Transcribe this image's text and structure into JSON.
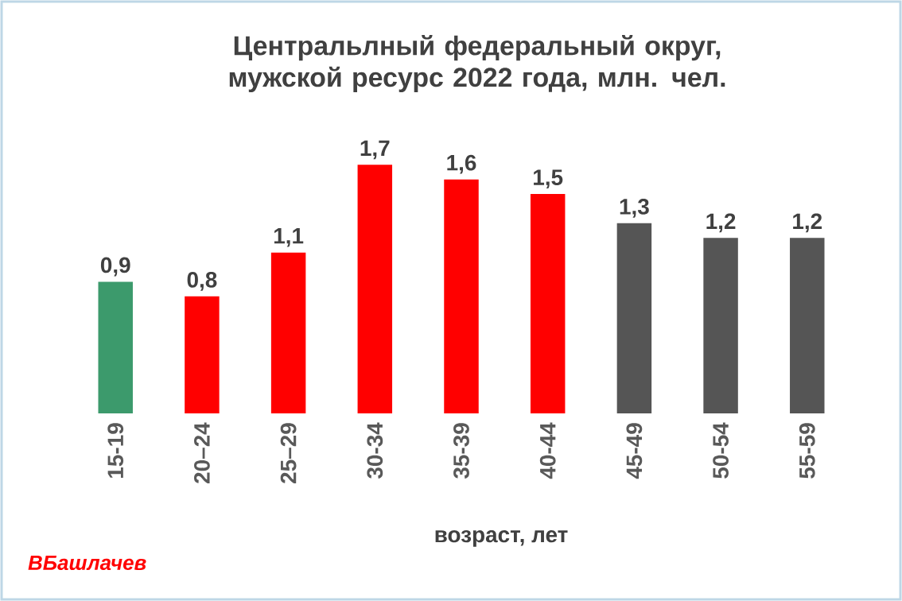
{
  "chart_data": {
    "type": "bar",
    "title": "Центральлный федеральный округ, мужской ресурс 2022 года, млн. чел.",
    "xlabel": "возраст, лет",
    "annotations": [
      "ВБашлачев"
    ],
    "categories": [
      "15-19",
      "20–24",
      "25–29",
      "30-34",
      "35-39",
      "40-44",
      "45-49",
      "50-54",
      "55-59"
    ],
    "values": [
      0.9,
      0.8,
      1.1,
      1.7,
      1.6,
      1.5,
      1.3,
      1.2,
      1.2
    ],
    "value_labels": [
      "0,9",
      "0,8",
      "1,1",
      "1,7",
      "1,6",
      "1,5",
      "1,3",
      "1,2",
      "1,2"
    ],
    "colors": [
      "#3c9a6c",
      "#ff0000",
      "#ff0000",
      "#ff0000",
      "#ff0000",
      "#ff0000",
      "#555555",
      "#555555",
      "#555555"
    ]
  }
}
